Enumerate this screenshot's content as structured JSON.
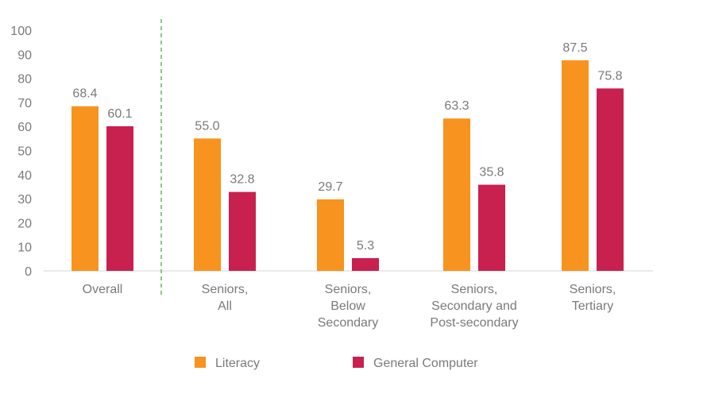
{
  "chart_data": {
    "type": "bar",
    "categories": [
      [
        "Overall"
      ],
      [
        "Seniors,",
        "All"
      ],
      [
        "Seniors,",
        "Below",
        "Secondary"
      ],
      [
        "Seniors,",
        "Secondary and",
        "Post-secondary"
      ],
      [
        "Seniors,",
        "Tertiary"
      ]
    ],
    "series": [
      {
        "name": "Literacy",
        "color": "#F7931E",
        "values": [
          68.4,
          55.0,
          29.7,
          63.3,
          87.5
        ],
        "labels": [
          "68.4",
          "55.0",
          "29.7",
          "63.3",
          "87.5"
        ]
      },
      {
        "name": "General Computer",
        "color": "#C8214F",
        "values": [
          60.1,
          32.8,
          5.3,
          35.8,
          75.8
        ],
        "labels": [
          "60.1",
          "32.8",
          "5.3",
          "35.8",
          "75.8"
        ]
      }
    ],
    "ylim": [
      0,
      100
    ],
    "yticks": [
      "0",
      "10",
      "20",
      "30",
      "40",
      "50",
      "60",
      "70",
      "80",
      "90",
      "100"
    ],
    "grid": false,
    "separator": "dashed vertical line after Overall",
    "legend_position": "bottom"
  }
}
